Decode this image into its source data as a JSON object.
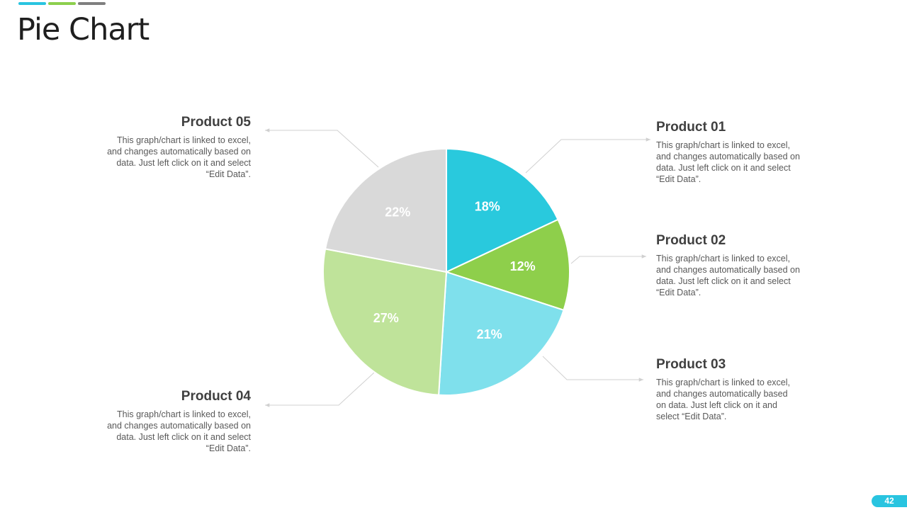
{
  "title": "Pie Chart",
  "page_number": "42",
  "colors": {
    "accent_blue": "#29c4e0",
    "accent_green": "#8ccf4d",
    "accent_gray": "#7f7f7f"
  },
  "chart_data": {
    "type": "pie",
    "start_angle_deg": 0,
    "direction": "clockwise",
    "slices": [
      {
        "name": "Product 01",
        "value": 18,
        "label": "18%",
        "color": "#29c9dd"
      },
      {
        "name": "Product 02",
        "value": 12,
        "label": "12%",
        "color": "#8ecf4b"
      },
      {
        "name": "Product 03",
        "value": 21,
        "label": "21%",
        "color": "#7fe0ec"
      },
      {
        "name": "Product 04",
        "value": 27,
        "label": "27%",
        "color": "#bfe39a"
      },
      {
        "name": "Product 05",
        "value": 22,
        "label": "22%",
        "color": "#d9d9d9"
      }
    ]
  },
  "products": {
    "p01": {
      "title": "Product 01",
      "text": "This graph/chart is linked to excel, and changes automatically based on data. Just left click on it and select “Edit Data”."
    },
    "p02": {
      "title": "Product 02",
      "text": "This graph/chart is linked to excel, and changes automatically based on data. Just left click on it and select “Edit Data”."
    },
    "p03": {
      "title": "Product 03",
      "text": "This graph/chart is linked to excel, and changes automatically based on data. Just left click on it and select “Edit Data”."
    },
    "p04": {
      "title": "Product 04",
      "text": "This graph/chart is linked to excel, and changes automatically based on data. Just left click on it and select “Edit Data”."
    },
    "p05": {
      "title": "Product 05",
      "text": "This graph/chart is linked to excel, and changes automatically based on data. Just left click on it and select “Edit Data”."
    }
  }
}
